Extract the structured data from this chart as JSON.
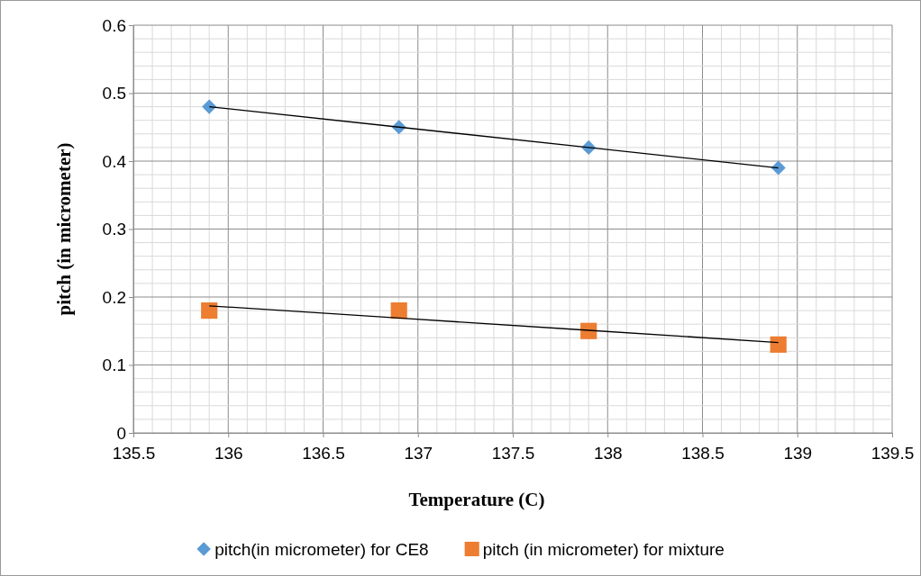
{
  "chart_data": {
    "type": "scatter",
    "xlabel": "Temperature (C)",
    "ylabel": "pitch (in  micrometer)",
    "x": [
      135.9,
      136.9,
      137.9,
      138.9
    ],
    "series": [
      {
        "name": "pitch(in micrometer) for CE8",
        "color": "#5b9bd5",
        "marker": "diamond",
        "values": [
          0.48,
          0.45,
          0.42,
          0.39
        ]
      },
      {
        "name": "pitch (in micrometer) for mixture",
        "color": "#ed7d31",
        "marker": "square",
        "values": [
          0.18,
          0.18,
          0.15,
          0.13
        ]
      },
      {
        "type": "line",
        "color": "#000000",
        "marker": "none",
        "values": [
          0.48,
          0.45,
          0.42,
          0.39
        ]
      },
      {
        "type": "line",
        "color": "#000000",
        "marker": "none",
        "values": [
          0.187,
          0.169,
          0.151,
          0.133
        ]
      }
    ],
    "xlim": [
      135.5,
      139.5
    ],
    "xticks": [
      135.5,
      136,
      136.5,
      137,
      137.5,
      138,
      138.5,
      139,
      139.5
    ],
    "ylim": [
      0,
      0.6
    ],
    "yticks": [
      0,
      0.1,
      0.2,
      0.3,
      0.4,
      0.5,
      0.6
    ],
    "grid": true,
    "legend": "bottom"
  }
}
